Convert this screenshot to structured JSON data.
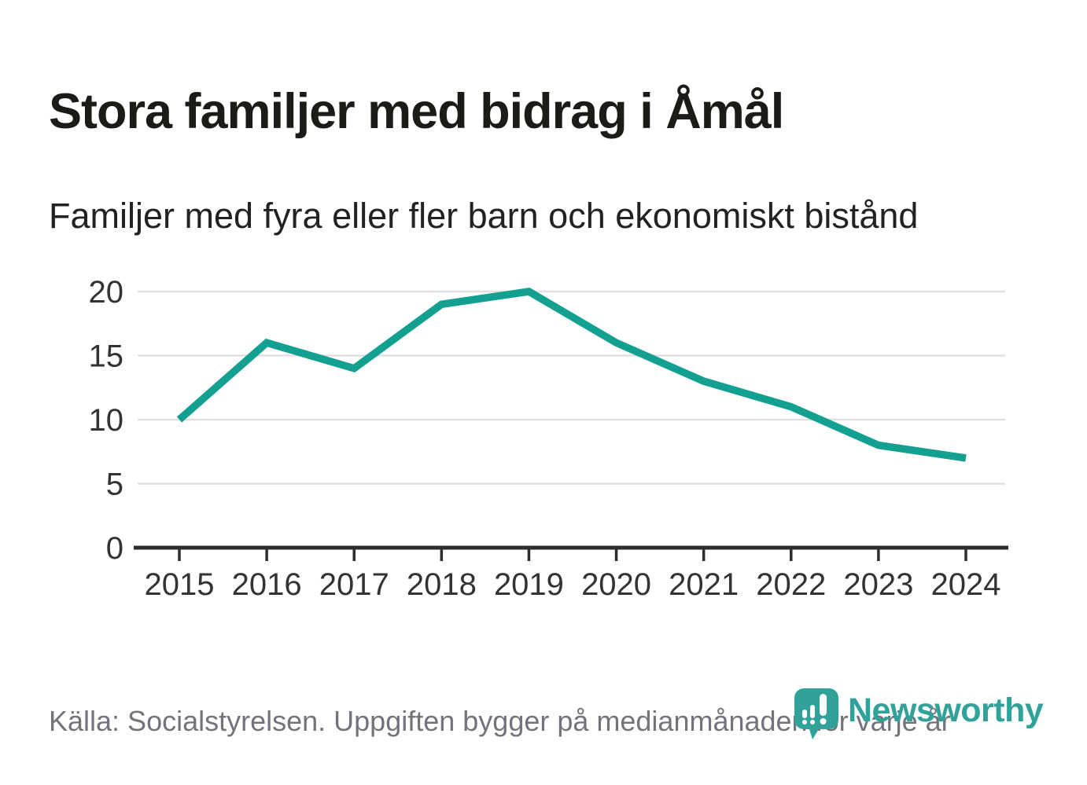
{
  "header": {
    "title": "Stora familjer med bidrag i Åmål",
    "subtitle": "Familjer med fyra eller fler barn och ekonomiskt bistånd"
  },
  "chart_data": {
    "type": "line",
    "title": "Stora familjer med bidrag i Åmål",
    "subtitle": "Familjer med fyra eller fler barn och ekonomiskt bistånd",
    "x": [
      2015,
      2016,
      2017,
      2018,
      2019,
      2020,
      2021,
      2022,
      2023,
      2024
    ],
    "series": [
      {
        "name": "Familjer med fyra eller fler barn och ekonomiskt bistånd",
        "values": [
          10,
          16,
          14,
          19,
          20,
          16,
          13,
          11,
          8,
          7
        ]
      }
    ],
    "xlabel": "",
    "ylabel": "",
    "ylim": [
      0,
      20
    ],
    "yticks": [
      0,
      5,
      10,
      15,
      20
    ],
    "grid": true,
    "legend": "none"
  },
  "footer": {
    "source_note": "Källa: Socialstyrelsen. Uppgiften bygger på medianmånaden för varje år",
    "brand_name": "Newsworthy"
  },
  "colors": {
    "line": "#14a091",
    "brand": "#31a29a",
    "gridline": "#e0e0e0",
    "axis": "#2d2d2d",
    "axis_text": "#333333",
    "title_text": "#1b1b18",
    "subtitle_text": "#222220",
    "source_text": "#73737b",
    "background": "#ffffff"
  }
}
